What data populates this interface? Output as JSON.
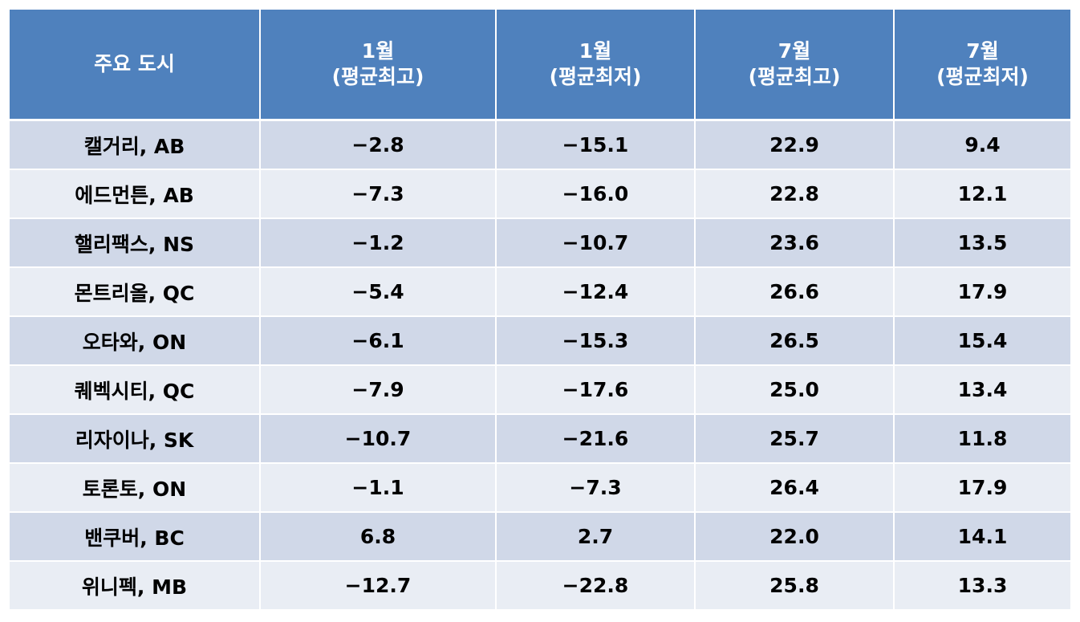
{
  "table": {
    "headers": [
      {
        "line1": "주요 도시",
        "line2": ""
      },
      {
        "line1": "1월",
        "line2": "(평균최고)"
      },
      {
        "line1": "1월",
        "line2": "(평균최저)"
      },
      {
        "line1": "7월",
        "line2": "(평균최고)"
      },
      {
        "line1": "7월",
        "line2": "(평균최저)"
      }
    ],
    "rows": [
      [
        "캘거리, AB",
        "−2.8",
        "−15.1",
        "22.9",
        "9.4"
      ],
      [
        "에드먼튼, AB",
        "−7.3",
        "−16.0",
        "22.8",
        "12.1"
      ],
      [
        "핼리팩스, NS",
        "−1.2",
        "−10.7",
        "23.6",
        "13.5"
      ],
      [
        "몬트리올, QC",
        "−5.4",
        "−12.4",
        "26.6",
        "17.9"
      ],
      [
        "오타와, ON",
        "−6.1",
        "−15.3",
        "26.5",
        "15.4"
      ],
      [
        "퀘벡시티, QC",
        "−7.9",
        "−17.6",
        "25.0",
        "13.4"
      ],
      [
        "리자이나, SK",
        "−10.7",
        "−21.6",
        "25.7",
        "11.8"
      ],
      [
        "토론토, ON",
        "−1.1",
        "−7.3",
        "26.4",
        "17.9"
      ],
      [
        "밴쿠버, BC",
        "6.8",
        "2.7",
        "22.0",
        "14.1"
      ],
      [
        "위니펙, MB",
        "−12.7",
        "−22.8",
        "25.8",
        "13.3"
      ]
    ]
  },
  "colors": {
    "header_bg": "#4f81bd",
    "row_odd_bg": "#d0d8e8",
    "row_even_bg": "#e9edf4"
  }
}
